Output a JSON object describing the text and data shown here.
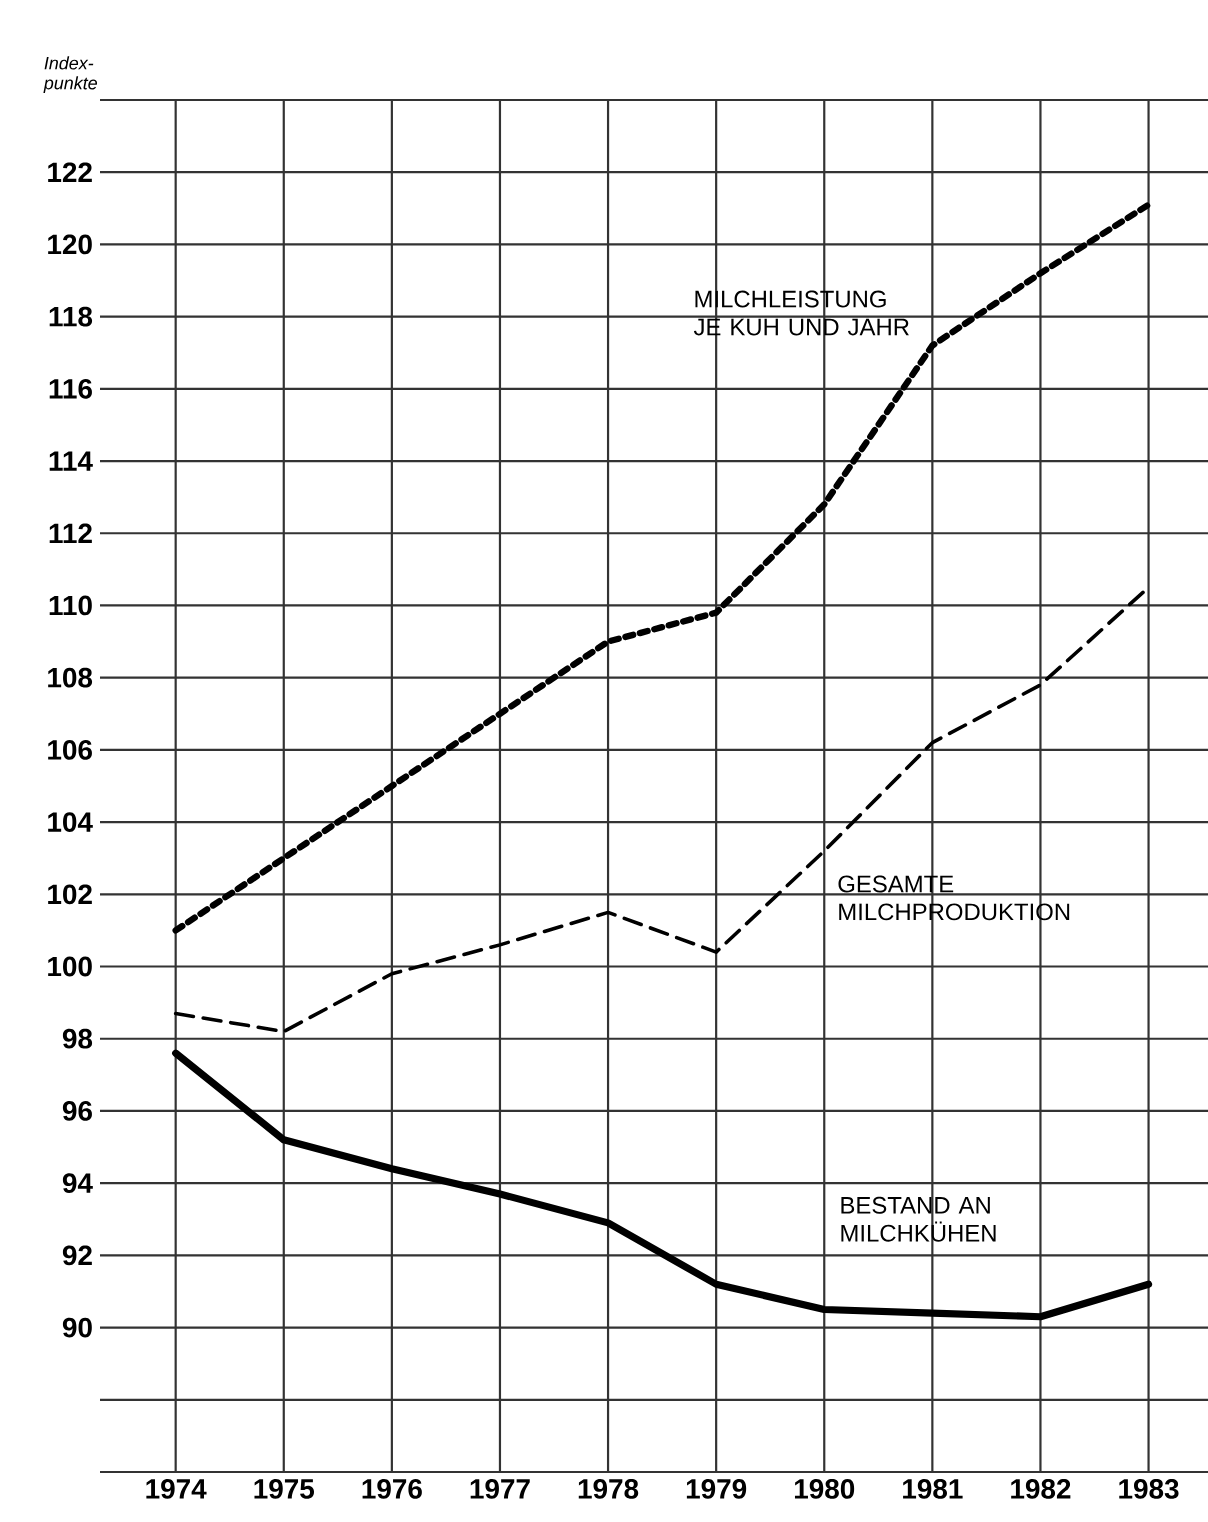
{
  "chart_data": {
    "type": "line",
    "ylabel": "Index-punkte",
    "categories": [
      "1974",
      "1975",
      "1976",
      "1977",
      "1978",
      "1979",
      "1980",
      "1981",
      "1982",
      "1983"
    ],
    "ylim": [
      86,
      124
    ],
    "yticks": [
      {
        "value": 86,
        "label": null
      },
      {
        "value": 88,
        "label": null
      },
      90,
      92,
      94,
      96,
      98,
      100,
      102,
      104,
      106,
      108,
      110,
      112,
      114,
      116,
      118,
      120,
      122,
      {
        "value": 124,
        "label": null
      }
    ],
    "grid": true,
    "legend": false,
    "marker": "none",
    "series": [
      {
        "name": "MILCHLEISTUNG JE KUH UND JAHR",
        "color": "#000000",
        "line_style": "dotted",
        "values": [
          101.0,
          103.0,
          105.0,
          107.0,
          109.0,
          109.8,
          112.8,
          117.2,
          119.2,
          121.1
        ]
      },
      {
        "name": "GESAMTE MILCHPRODUKTION",
        "color": "#000000",
        "line_style": "dashed",
        "values": [
          98.7,
          98.2,
          99.8,
          100.6,
          101.5,
          100.4,
          103.2,
          106.2,
          107.8,
          110.5
        ]
      },
      {
        "name": "BESTAND AN MILCHKÜHEN",
        "color": "#000000",
        "line_style": "solid",
        "values": [
          97.6,
          95.2,
          94.4,
          93.7,
          92.9,
          91.2,
          90.5,
          90.4,
          90.3,
          91.2
        ]
      }
    ]
  }
}
